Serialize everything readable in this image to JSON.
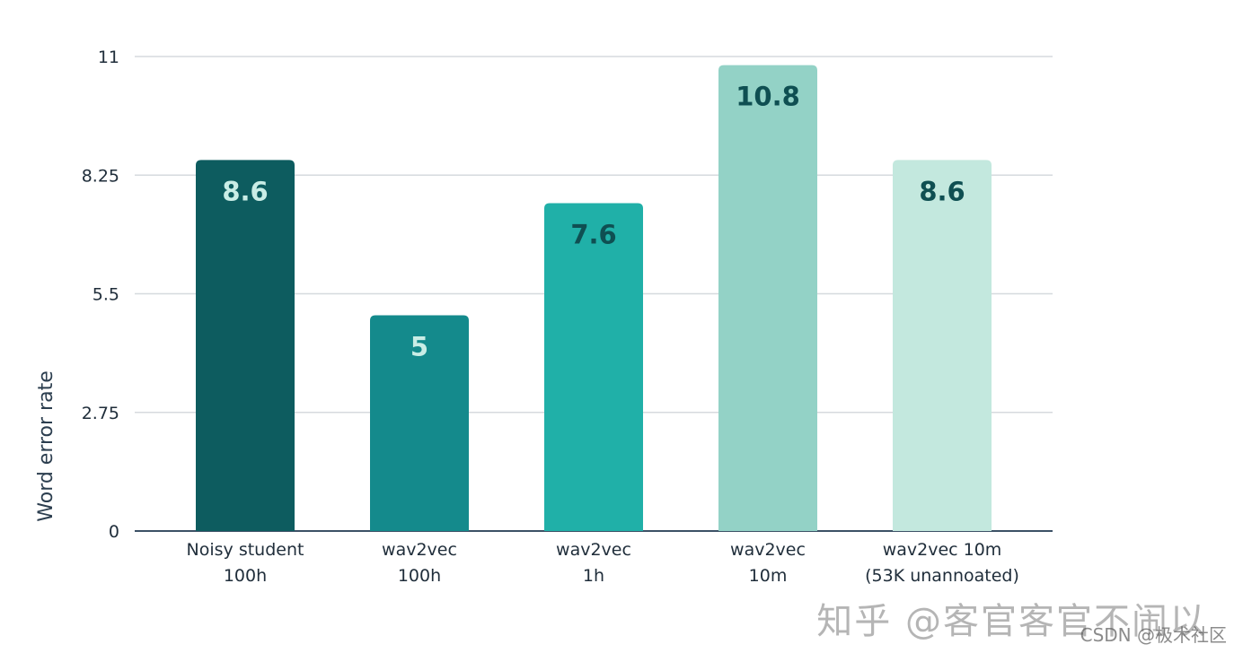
{
  "chart_data": {
    "type": "bar",
    "title": "",
    "xlabel": "",
    "ylabel": "Word error rate",
    "ylim": [
      0,
      11
    ],
    "yticks": [
      0,
      2.75,
      5.5,
      8.25,
      11
    ],
    "ytick_labels": [
      "0",
      "2.75",
      "5.5",
      "8.25",
      "11"
    ],
    "grid": true,
    "categories": [
      [
        "Noisy student",
        "100h"
      ],
      [
        "wav2vec",
        "100h"
      ],
      [
        "wav2vec",
        "1h"
      ],
      [
        "wav2vec",
        "10m"
      ],
      [
        "wav2vec 10m",
        "(53K unannoated)"
      ]
    ],
    "values": [
      8.6,
      5,
      7.6,
      10.8,
      8.6
    ],
    "value_labels": [
      "8.6",
      "5",
      "7.6",
      "10.8",
      "8.6"
    ],
    "bar_colors": [
      "#0d5c5f",
      "#148a8c",
      "#20b0a8",
      "#93d2c6",
      "#c3e8de"
    ],
    "label_colors": [
      "#c9ede6",
      "#c9ede6",
      "#0f4f52",
      "#0f4f52",
      "#0f4f52"
    ]
  },
  "watermarks": {
    "zhihu": "知乎 @客官客官不闹以",
    "csdn": "CSDN @极术社区"
  }
}
